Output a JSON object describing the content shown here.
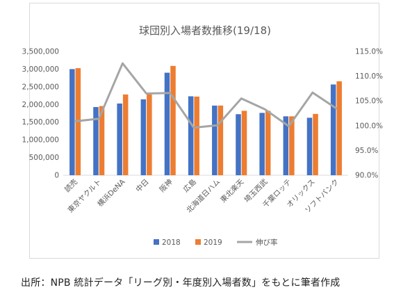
{
  "chart_data": {
    "type": "bar",
    "title": "球団別入場者数推移(19/18)",
    "categories": [
      "読売",
      "東京ヤクルト",
      "横浜DeNA",
      "中日",
      "阪神",
      "広島",
      "北海道日ハム",
      "東北楽天",
      "埼玉西武",
      "千葉ロッテ",
      "オリックス",
      "ソフトバンク"
    ],
    "series": [
      {
        "name": "2018",
        "type": "bar",
        "axis": "left",
        "color": "#4472c4",
        "values": [
          3001112,
          1927822,
          2027922,
          2146406,
          2898976,
          2232100,
          1968916,
          1726004,
          1763174,
          1665891,
          1625365,
          2566554
        ]
      },
      {
        "name": "2019",
        "type": "bar",
        "axis": "left",
        "color": "#ed7d31",
        "values": [
          3027682,
          1955578,
          2283524,
          2285333,
          3091335,
          2223619,
          1970516,
          1821785,
          1821519,
          1665133,
          1733998,
          2656182
        ]
      },
      {
        "name": "伸び率",
        "type": "line",
        "axis": "right",
        "color": "#a5a5a5",
        "values": [
          100.9,
          101.4,
          112.6,
          106.5,
          106.6,
          99.6,
          100.1,
          105.5,
          103.3,
          99.9,
          106.7,
          103.5
        ]
      }
    ],
    "ylim": [
      0,
      3500000
    ],
    "yticks": [
      "0",
      "500,000",
      "1,000,000",
      "1,500,000",
      "2,000,000",
      "2,500,000",
      "3,000,000",
      "3,500,000"
    ],
    "y2lim": [
      90,
      115
    ],
    "y2ticks": [
      "90.0%",
      "95.0%",
      "100.0%",
      "105.0%",
      "110.0%",
      "115.0%"
    ],
    "grid": false,
    "legend_position": "bottom"
  },
  "source_note": "出所：NPB 統計データ「リーグ別・年度別入場者数」をもとに筆者作成"
}
